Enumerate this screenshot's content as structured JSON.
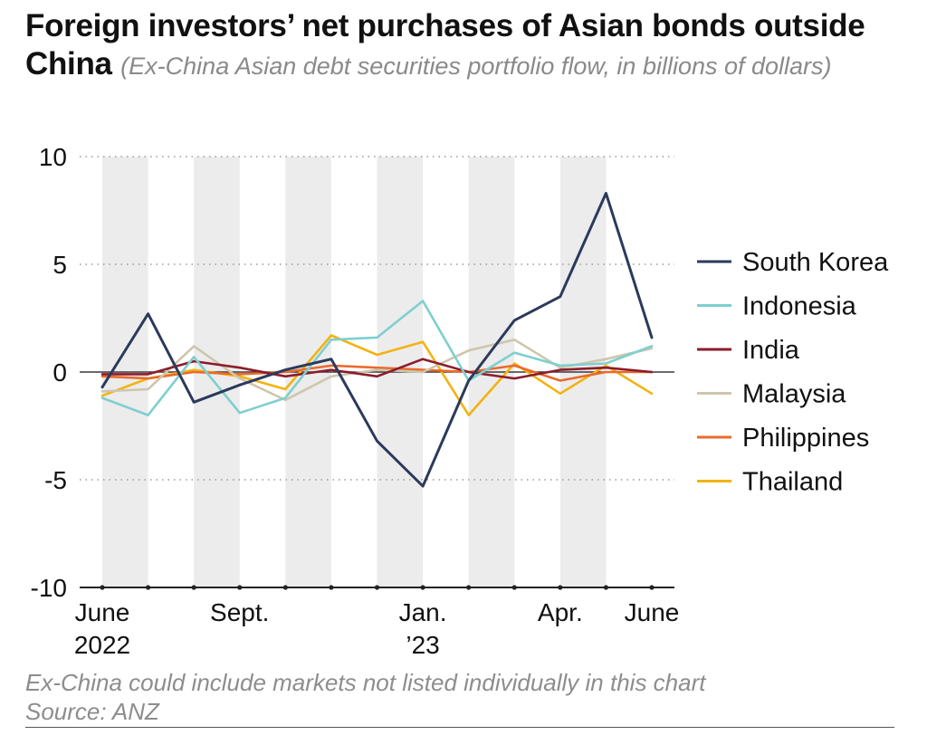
{
  "header": {
    "title": "Foreign investors’ net purchases of Asian bonds outside China",
    "subtitle": "(Ex-China Asian debt securities portfolio flow, in billions of dollars)"
  },
  "footer": {
    "note": "Ex-China could include markets not listed individually in this chart",
    "source": "Source: ANZ"
  },
  "chart_data": {
    "type": "line",
    "title": "Foreign investors’ net purchases of Asian bonds outside China",
    "subtitle": "(Ex-China Asian debt securities portfolio flow, in billions of dollars)",
    "x": [
      "2022-06",
      "2022-07",
      "2022-08",
      "2022-09",
      "2022-10",
      "2022-11",
      "2022-12",
      "2023-01",
      "2023-02",
      "2023-03",
      "2023-04",
      "2023-05",
      "2023-06"
    ],
    "x_tick_labels": [
      {
        "month": "2022-06",
        "lines": [
          "June",
          "2022"
        ]
      },
      {
        "month": "2022-09",
        "lines": [
          "Sept."
        ]
      },
      {
        "month": "2023-01",
        "lines": [
          "Jan.",
          "’23"
        ]
      },
      {
        "month": "2023-04",
        "lines": [
          "Apr."
        ]
      },
      {
        "month": "2023-06",
        "lines": [
          "June"
        ]
      }
    ],
    "ylim": [
      -10,
      10
    ],
    "y_ticks": [
      10,
      5,
      0,
      -5,
      -10
    ],
    "y_tick_labels": [
      "10",
      "5",
      "0",
      "-5",
      "-10"
    ],
    "grid": "dotted horizontal",
    "shaded_months": [
      "2022-06",
      "2022-08",
      "2022-10",
      "2022-12",
      "2023-02",
      "2023-04"
    ],
    "legend_position": "right",
    "series": [
      {
        "name": "South Korea",
        "color": "#2b3a5c",
        "values": [
          -0.7,
          2.7,
          -1.4,
          -0.6,
          0.1,
          0.6,
          -3.2,
          -5.3,
          -0.4,
          2.4,
          3.5,
          8.3,
          1.6
        ]
      },
      {
        "name": "Indonesia",
        "color": "#7fcfcf",
        "values": [
          -1.2,
          -2.0,
          0.7,
          -1.9,
          -1.2,
          1.5,
          1.6,
          3.3,
          -0.4,
          0.9,
          0.3,
          0.4,
          1.2
        ]
      },
      {
        "name": "India",
        "color": "#8c1c2b",
        "values": [
          -0.1,
          -0.1,
          0.5,
          0.2,
          -0.2,
          0.1,
          -0.2,
          0.6,
          0.0,
          -0.3,
          0.1,
          0.2,
          0.0
        ]
      },
      {
        "name": "Malaysia",
        "color": "#cec6ad",
        "values": [
          -0.9,
          -0.8,
          1.2,
          -0.3,
          -1.3,
          -0.2,
          0.1,
          0.0,
          1.0,
          1.5,
          0.2,
          0.6,
          1.1
        ]
      },
      {
        "name": "Philippines",
        "color": "#e96b2c",
        "values": [
          -0.2,
          -0.3,
          0.0,
          -0.1,
          0.0,
          0.3,
          0.2,
          0.1,
          0.0,
          0.3,
          -0.4,
          0.0,
          0.0
        ]
      },
      {
        "name": "Thailand",
        "color": "#f2b312",
        "values": [
          -1.1,
          -0.3,
          0.1,
          -0.2,
          -0.8,
          1.7,
          0.8,
          1.4,
          -2.0,
          0.4,
          -1.0,
          0.3,
          -1.0
        ]
      }
    ]
  }
}
